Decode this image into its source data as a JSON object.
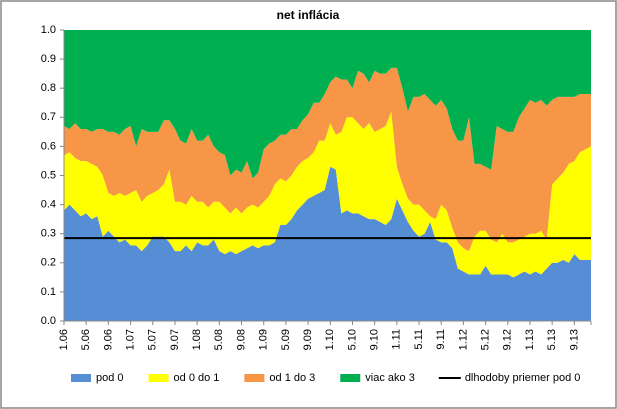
{
  "chart_data": {
    "type": "area",
    "title": "net inflácia",
    "categories": [
      "1.06",
      null,
      null,
      null,
      "5.06",
      null,
      null,
      null,
      "9.06",
      null,
      null,
      null,
      "1.07",
      null,
      null,
      null,
      "5.07",
      null,
      null,
      null,
      "9.07",
      null,
      null,
      null,
      "1.08",
      null,
      null,
      null,
      "5.08",
      null,
      null,
      null,
      "9.08",
      null,
      null,
      null,
      "1.09",
      null,
      null,
      null,
      "5.09",
      null,
      null,
      null,
      "9.09",
      null,
      null,
      null,
      "1.10",
      null,
      null,
      null,
      "5.10",
      null,
      null,
      null,
      "9.10",
      null,
      null,
      null,
      "1.11",
      null,
      null,
      null,
      "5.11",
      null,
      null,
      null,
      "9.11",
      null,
      null,
      null,
      "1.12",
      null,
      null,
      null,
      "5.12",
      null,
      null,
      null,
      "9.12",
      null,
      null,
      null,
      "1.13",
      null,
      null,
      null,
      "5.13",
      null,
      null,
      null,
      "9.13",
      null,
      null,
      null
    ],
    "series": [
      {
        "name": "pod 0",
        "color": "#558ed5",
        "values": [
          0.38,
          0.4,
          0.38,
          0.36,
          0.37,
          0.35,
          0.36,
          0.29,
          0.31,
          0.29,
          0.27,
          0.28,
          0.26,
          0.26,
          0.24,
          0.26,
          0.29,
          0.29,
          0.29,
          0.27,
          0.24,
          0.24,
          0.26,
          0.24,
          0.27,
          0.26,
          0.26,
          0.28,
          0.24,
          0.23,
          0.24,
          0.23,
          0.24,
          0.25,
          0.26,
          0.25,
          0.26,
          0.26,
          0.27,
          0.33,
          0.33,
          0.35,
          0.38,
          0.4,
          0.42,
          0.43,
          0.44,
          0.45,
          0.53,
          0.52,
          0.37,
          0.38,
          0.37,
          0.37,
          0.36,
          0.35,
          0.35,
          0.34,
          0.33,
          0.35,
          0.42,
          0.38,
          0.34,
          0.31,
          0.29,
          0.3,
          0.34,
          0.28,
          0.27,
          0.27,
          0.25,
          0.18,
          0.17,
          0.16,
          0.16,
          0.16,
          0.19,
          0.16,
          0.16,
          0.16,
          0.16,
          0.15,
          0.16,
          0.17,
          0.16,
          0.17,
          0.16,
          0.18,
          0.2,
          0.2,
          0.21,
          0.2,
          0.23,
          0.21,
          0.21,
          0.21
        ]
      },
      {
        "name": "od 0 do 1",
        "color": "#ffff00",
        "values": [
          0.19,
          0.18,
          0.18,
          0.19,
          0.18,
          0.19,
          0.17,
          0.21,
          0.13,
          0.14,
          0.17,
          0.15,
          0.18,
          0.19,
          0.17,
          0.17,
          0.15,
          0.16,
          0.18,
          0.25,
          0.17,
          0.17,
          0.14,
          0.19,
          0.14,
          0.15,
          0.13,
          0.13,
          0.17,
          0.16,
          0.13,
          0.16,
          0.13,
          0.14,
          0.14,
          0.14,
          0.15,
          0.17,
          0.2,
          0.16,
          0.15,
          0.15,
          0.15,
          0.15,
          0.14,
          0.15,
          0.18,
          0.17,
          0.15,
          0.12,
          0.28,
          0.32,
          0.33,
          0.31,
          0.3,
          0.33,
          0.3,
          0.32,
          0.34,
          0.37,
          0.11,
          0.09,
          0.08,
          0.09,
          0.11,
          0.08,
          0.02,
          0.07,
          0.13,
          0.11,
          0.07,
          0.09,
          0.08,
          0.08,
          0.13,
          0.15,
          0.12,
          0.12,
          0.11,
          0.14,
          0.11,
          0.12,
          0.12,
          0.12,
          0.14,
          0.13,
          0.15,
          0.1,
          0.27,
          0.29,
          0.3,
          0.34,
          0.32,
          0.37,
          0.38,
          0.39
        ]
      },
      {
        "name": "od 1 do 3",
        "color": "#f79646",
        "values": [
          0.1,
          0.08,
          0.12,
          0.11,
          0.11,
          0.11,
          0.13,
          0.16,
          0.21,
          0.22,
          0.2,
          0.23,
          0.23,
          0.15,
          0.25,
          0.22,
          0.21,
          0.2,
          0.22,
          0.17,
          0.25,
          0.21,
          0.21,
          0.23,
          0.21,
          0.21,
          0.25,
          0.19,
          0.17,
          0.18,
          0.13,
          0.13,
          0.14,
          0.16,
          0.09,
          0.12,
          0.18,
          0.18,
          0.15,
          0.15,
          0.16,
          0.16,
          0.13,
          0.14,
          0.15,
          0.17,
          0.13,
          0.16,
          0.14,
          0.2,
          0.18,
          0.13,
          0.1,
          0.18,
          0.19,
          0.14,
          0.21,
          0.19,
          0.18,
          0.15,
          0.34,
          0.33,
          0.3,
          0.37,
          0.37,
          0.4,
          0.4,
          0.39,
          0.36,
          0.35,
          0.34,
          0.35,
          0.37,
          0.46,
          0.25,
          0.23,
          0.22,
          0.24,
          0.4,
          0.36,
          0.38,
          0.38,
          0.42,
          0.44,
          0.46,
          0.45,
          0.45,
          0.46,
          0.29,
          0.28,
          0.26,
          0.23,
          0.22,
          0.2,
          0.19,
          0.18
        ]
      },
      {
        "name": "viac ako 3",
        "color": "#00b050",
        "values": [
          0.33,
          0.34,
          0.32,
          0.34,
          0.34,
          0.35,
          0.34,
          0.34,
          0.35,
          0.35,
          0.36,
          0.34,
          0.33,
          0.4,
          0.34,
          0.35,
          0.35,
          0.35,
          0.31,
          0.31,
          0.34,
          0.38,
          0.39,
          0.34,
          0.38,
          0.38,
          0.36,
          0.4,
          0.42,
          0.43,
          0.5,
          0.48,
          0.49,
          0.45,
          0.51,
          0.49,
          0.41,
          0.39,
          0.38,
          0.36,
          0.36,
          0.34,
          0.34,
          0.31,
          0.29,
          0.25,
          0.25,
          0.22,
          0.18,
          0.16,
          0.17,
          0.17,
          0.2,
          0.14,
          0.15,
          0.18,
          0.14,
          0.15,
          0.15,
          0.13,
          0.13,
          0.2,
          0.28,
          0.23,
          0.23,
          0.22,
          0.24,
          0.26,
          0.24,
          0.27,
          0.34,
          0.38,
          0.38,
          0.3,
          0.46,
          0.46,
          0.47,
          0.48,
          0.33,
          0.34,
          0.35,
          0.35,
          0.3,
          0.27,
          0.24,
          0.25,
          0.24,
          0.26,
          0.24,
          0.23,
          0.23,
          0.23,
          0.23,
          0.22,
          0.22,
          0.22
        ]
      },
      {
        "name": "dlhodoby priemer pod 0",
        "color": "#000000",
        "type": "line",
        "values": [
          0.285,
          0.285,
          0.285,
          0.285,
          0.285,
          0.285,
          0.285,
          0.285,
          0.285,
          0.285,
          0.285,
          0.285,
          0.285,
          0.285,
          0.285,
          0.285,
          0.285,
          0.285,
          0.285,
          0.285,
          0.285,
          0.285,
          0.285,
          0.285,
          0.285,
          0.285,
          0.285,
          0.285,
          0.285,
          0.285,
          0.285,
          0.285,
          0.285,
          0.285,
          0.285,
          0.285,
          0.285,
          0.285,
          0.285,
          0.285,
          0.285,
          0.285,
          0.285,
          0.285,
          0.285,
          0.285,
          0.285,
          0.285,
          0.285,
          0.285,
          0.285,
          0.285,
          0.285,
          0.285,
          0.285,
          0.285,
          0.285,
          0.285,
          0.285,
          0.285,
          0.285,
          0.285,
          0.285,
          0.285,
          0.285,
          0.285,
          0.285,
          0.285,
          0.285,
          0.285,
          0.285,
          0.285,
          0.285,
          0.285,
          0.285,
          0.285,
          0.285,
          0.285,
          0.285,
          0.285,
          0.285,
          0.285,
          0.285,
          0.285,
          0.285,
          0.285,
          0.285,
          0.285,
          0.285,
          0.285,
          0.285,
          0.285,
          0.285,
          0.285,
          0.285,
          0.285
        ]
      }
    ],
    "ylim": [
      0,
      1
    ],
    "yticks": [
      {
        "value": 0,
        "label": "0.0"
      },
      0.1,
      0.2,
      0.3,
      0.4,
      0.5,
      0.6,
      0.7,
      0.8,
      0.9,
      {
        "value": 1,
        "label": "1.0"
      }
    ],
    "grid": false,
    "legend": "bottom"
  }
}
